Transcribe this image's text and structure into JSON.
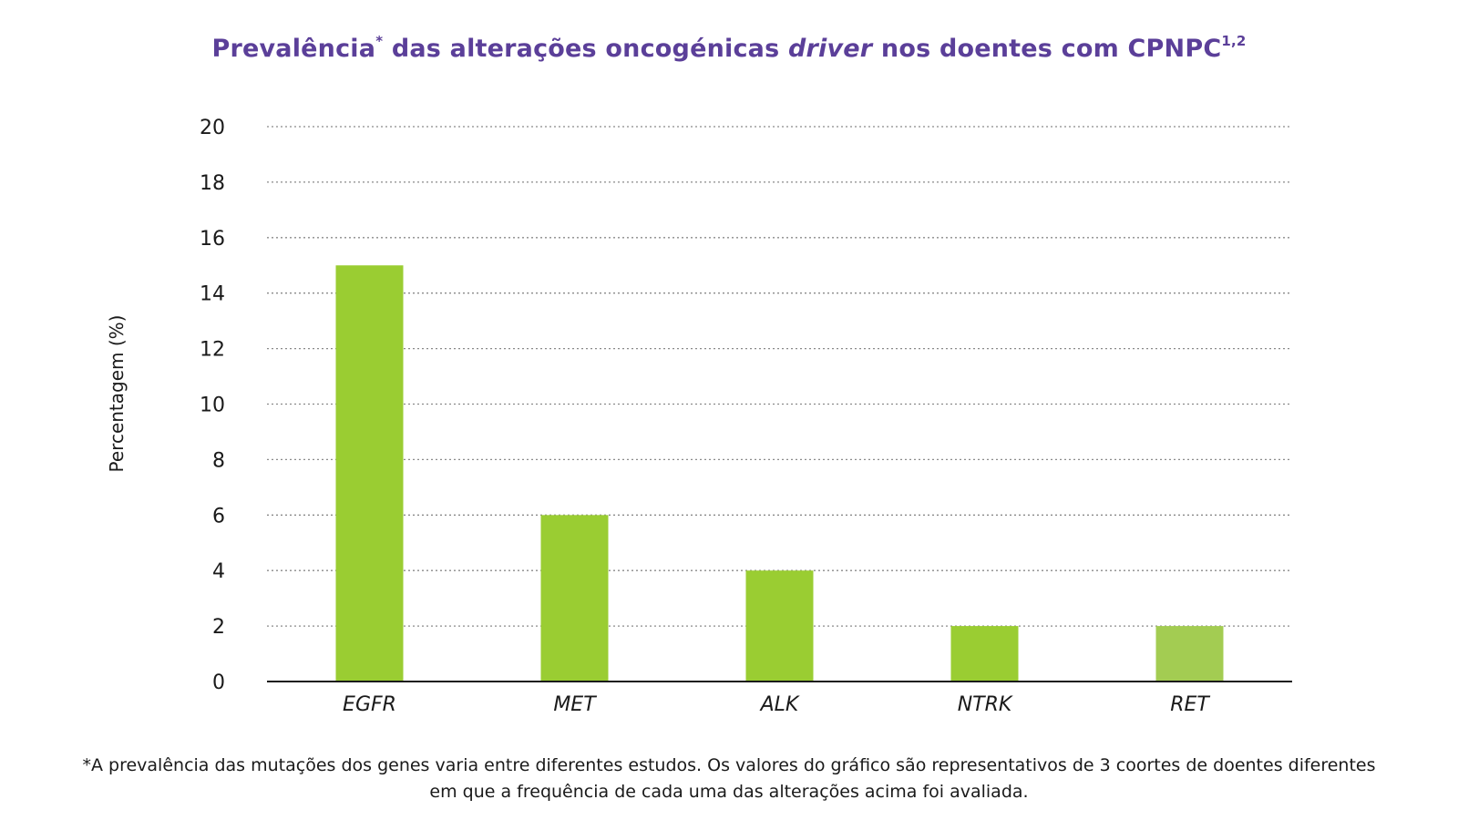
{
  "title": {
    "part1": "Prevalência",
    "asterisk": "*",
    "part2": " das alterações oncogénicas ",
    "italic": "driver",
    "part3": " nos doentes com CPNPC",
    "superscript": "1,2"
  },
  "chart_data": {
    "type": "bar",
    "categories": [
      "EGFR",
      "MET",
      "ALK",
      "NTRK",
      "RET"
    ],
    "values": [
      15,
      6,
      4,
      2,
      2
    ],
    "bar_colors": [
      "#9ACD32",
      "#9ACD32",
      "#9ACD32",
      "#9ACD32",
      "#A3CC52"
    ],
    "ylabel": "Percentagem (%)",
    "xlabel": "",
    "ylim": [
      0,
      20
    ],
    "yticks": [
      0,
      2,
      4,
      6,
      8,
      10,
      12,
      14,
      16,
      18,
      20
    ],
    "grid": "horizontal-dotted",
    "category_style": "italic"
  },
  "footnote": {
    "line1": "*A prevalência das mutações dos genes varia entre diferentes estudos. Os valores do gráfico são representativos de 3 coortes de doentes diferentes",
    "line2": "em que a frequência de cada uma das alterações acima foi avaliada."
  },
  "colors": {
    "title": "#5B3F99",
    "bar": "#9ACD32",
    "axis": "#1a1a1a",
    "grid": "#8a8a8a"
  }
}
